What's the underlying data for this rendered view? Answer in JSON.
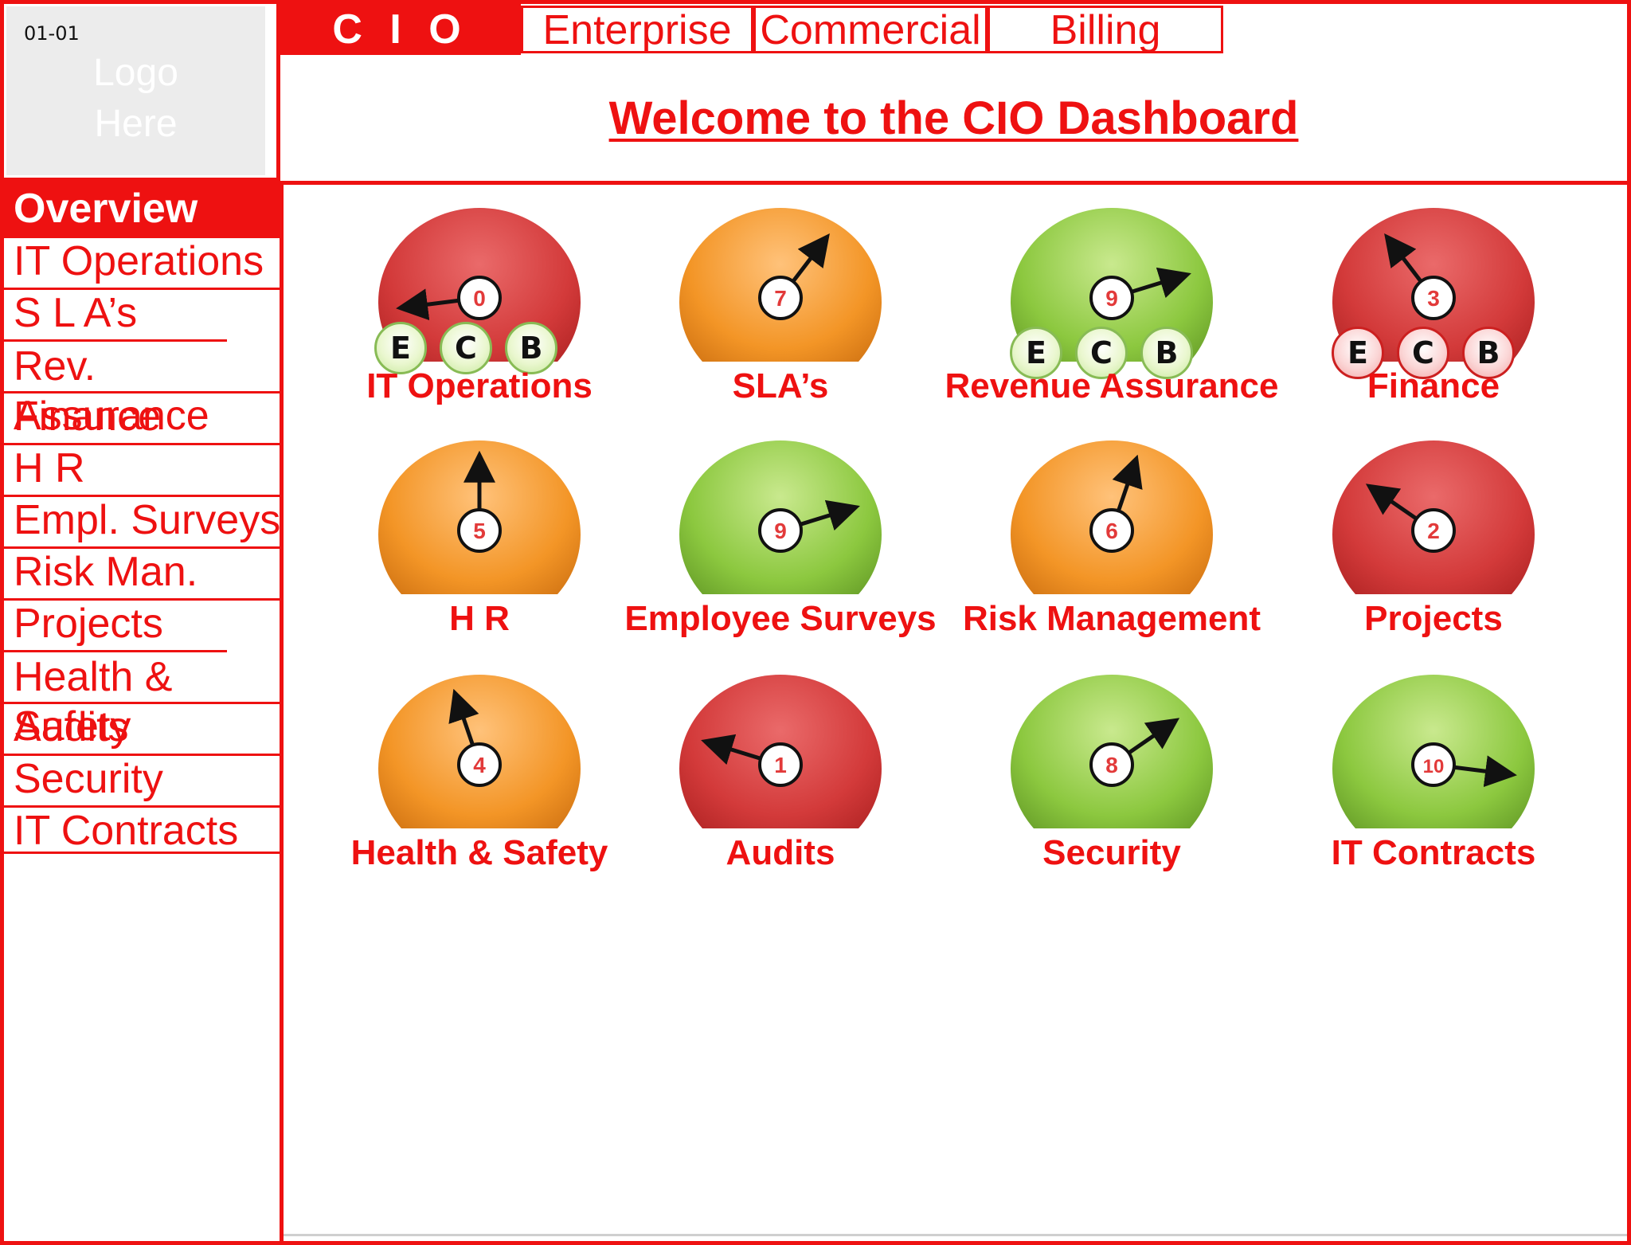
{
  "slide_id": "01-01",
  "logo": {
    "line1": "Logo",
    "line2": "Here"
  },
  "header": {
    "brand": "C I O",
    "tabs": [
      "Enterprise",
      "Commercial",
      "Billing"
    ],
    "welcome": "Welcome to the CIO Dashboard"
  },
  "sidebar": {
    "header": "Overview",
    "items": [
      "IT Operations",
      "S L A’s",
      "Rev. Assurance",
      "Finance",
      "H R",
      "Empl. Surveys",
      "Risk Man.",
      "Projects",
      "Health & Safety",
      "Audits",
      "Security",
      "IT Contracts"
    ]
  },
  "gauges": [
    {
      "label": "IT Operations",
      "value": 0,
      "status": "red",
      "ecb": [
        "E",
        "C",
        "B"
      ],
      "ecb_status": "green"
    },
    {
      "label": "SLA’s",
      "value": 7,
      "status": "orange"
    },
    {
      "label": "Revenue Assurance",
      "value": 9,
      "status": "green",
      "ecb": [
        "E",
        "C",
        "B"
      ],
      "ecb_status": "green"
    },
    {
      "label": "Finance",
      "value": 3,
      "status": "red",
      "ecb": [
        "E",
        "C",
        "B"
      ],
      "ecb_status": "red"
    },
    {
      "label": "H R",
      "value": 5,
      "status": "orange"
    },
    {
      "label": "Employee Surveys",
      "value": 9,
      "status": "green"
    },
    {
      "label": "Risk Management",
      "value": 6,
      "status": "orange"
    },
    {
      "label": "Projects",
      "value": 2,
      "status": "red"
    },
    {
      "label": "Health & Safety",
      "value": 4,
      "status": "orange"
    },
    {
      "label": "Audits",
      "value": 1,
      "status": "red"
    },
    {
      "label": "Security",
      "value": 8,
      "status": "green"
    },
    {
      "label": "IT Contracts",
      "value": 10,
      "status": "green"
    }
  ],
  "gauge_scale": [
    0,
    10
  ],
  "colors": {
    "accent": "#ee1111",
    "red": "#d63b3b",
    "orange": "#f39526",
    "green": "#8cc83f"
  }
}
